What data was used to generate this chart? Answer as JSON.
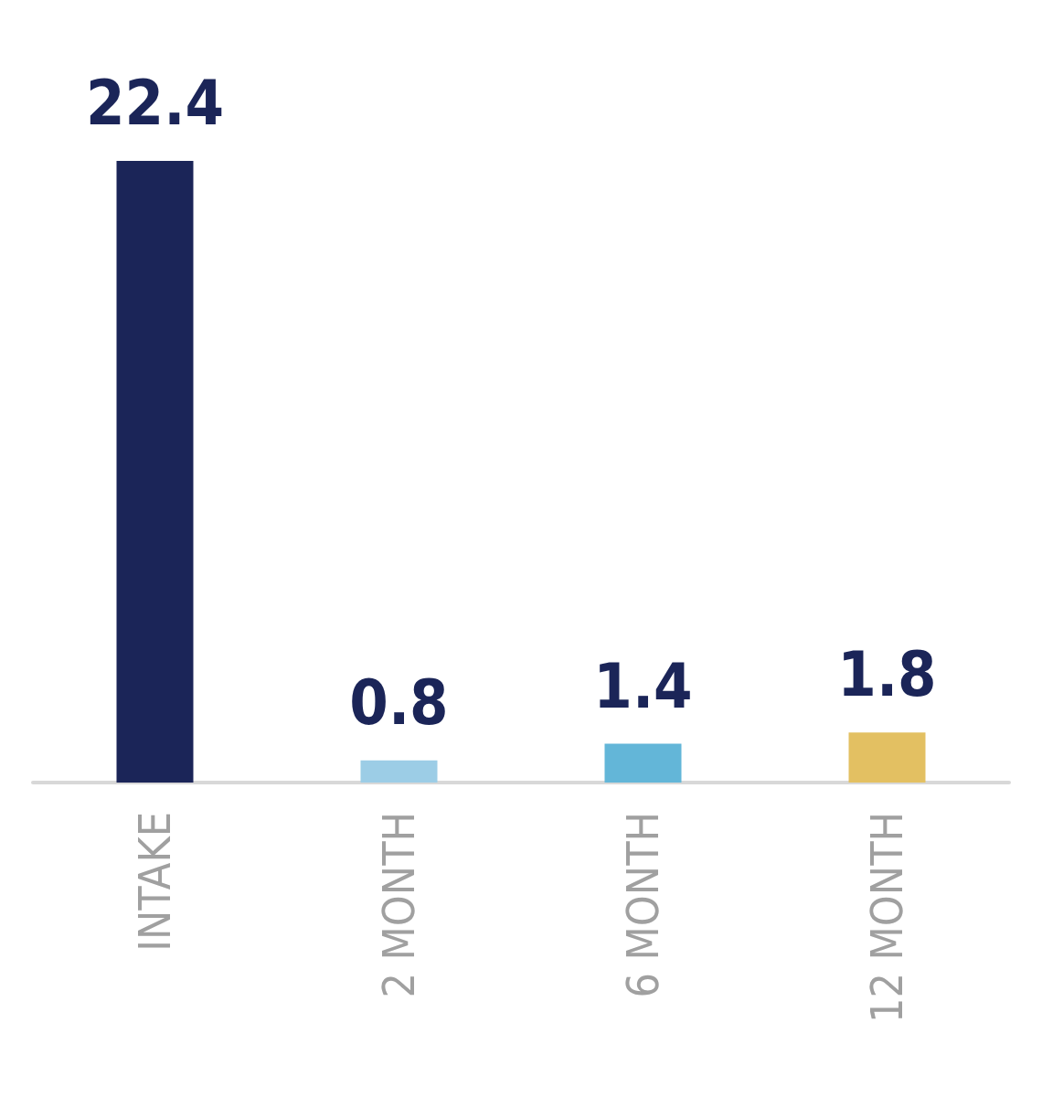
{
  "chart_data": {
    "type": "bar",
    "categories": [
      "INTAKE",
      "2 MONTH",
      "6 MONTH",
      "12 MONTH"
    ],
    "values": [
      22.4,
      0.8,
      1.4,
      1.8
    ],
    "colors": [
      "#1b2558",
      "#9ccde6",
      "#63b6d8",
      "#e3c062"
    ],
    "data_labels": true
  }
}
